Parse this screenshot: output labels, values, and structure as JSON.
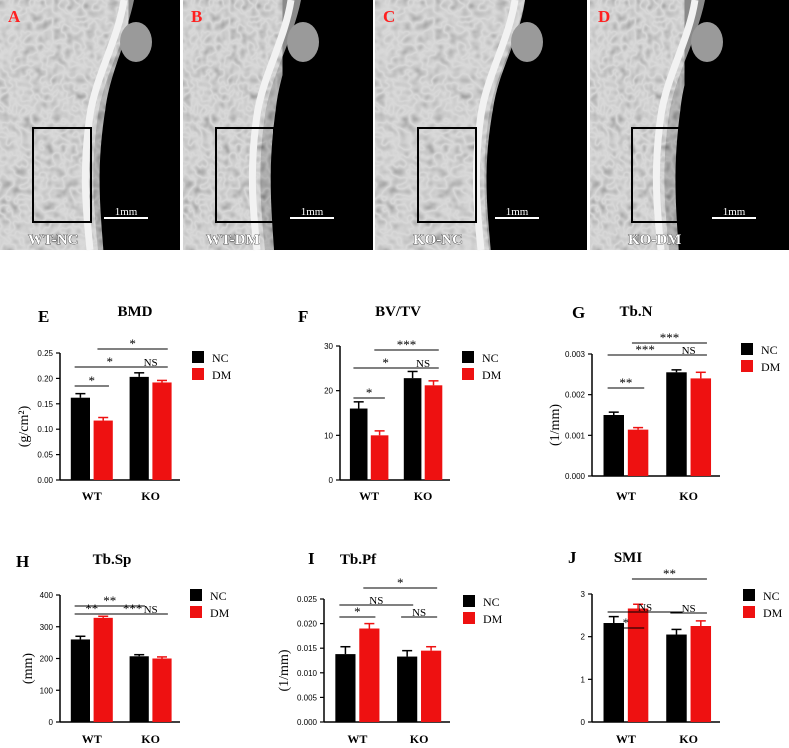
{
  "micro_ct": {
    "panels": [
      {
        "letter": "A",
        "group": "WT-NC",
        "scale": "1mm"
      },
      {
        "letter": "B",
        "group": "WT-DM",
        "scale": "1mm"
      },
      {
        "letter": "C",
        "group": "KO-NC",
        "scale": "1mm"
      },
      {
        "letter": "D",
        "group": "KO-DM",
        "scale": "1mm"
      }
    ]
  },
  "colors": {
    "NC": "#000000",
    "DM": "#ee1111",
    "panel_letter": "#ff2020",
    "background": "#ffffff"
  },
  "chart_data": [
    {
      "type": "bar",
      "letter": "E",
      "title": "BMD",
      "ylabel": "(g/cm²)",
      "categories": [
        "WT",
        "KO"
      ],
      "ylim": [
        0,
        0.25
      ],
      "yticks": [
        "0.00",
        "0.05",
        "0.10",
        "0.15",
        "0.20",
        "0.25"
      ],
      "legend": [
        "NC",
        "DM"
      ],
      "legend_position": "right",
      "series": [
        {
          "name": "NC",
          "values": [
            0.162,
            0.203
          ],
          "errors": [
            0.008,
            0.008
          ]
        },
        {
          "name": "DM",
          "values": [
            0.117,
            0.192
          ],
          "errors": [
            0.006,
            0.004
          ]
        }
      ],
      "annotations": [
        {
          "label": "*",
          "from": "WT-NC",
          "to": "WT-DM"
        },
        {
          "label": "*",
          "from": "WT-NC",
          "to": "KO-NC"
        },
        {
          "label": "*",
          "from": "WT-DM",
          "to": "KO-DM"
        },
        {
          "label": "NS",
          "from": "KO-NC",
          "to": "KO-DM"
        }
      ]
    },
    {
      "type": "bar",
      "letter": "F",
      "title": "BV/TV",
      "ylabel": "",
      "categories": [
        "WT",
        "KO"
      ],
      "ylim": [
        0,
        30
      ],
      "yticks": [
        "0",
        "10",
        "20",
        "30"
      ],
      "legend": [
        "NC",
        "DM"
      ],
      "legend_position": "right",
      "series": [
        {
          "name": "NC",
          "values": [
            16.0,
            22.8
          ],
          "errors": [
            1.5,
            1.5
          ]
        },
        {
          "name": "DM",
          "values": [
            10.0,
            21.2
          ],
          "errors": [
            1.0,
            1.0
          ]
        }
      ],
      "annotations": [
        {
          "label": "*",
          "from": "WT-NC",
          "to": "WT-DM"
        },
        {
          "label": "*",
          "from": "WT-NC",
          "to": "KO-NC"
        },
        {
          "label": "***",
          "from": "WT-DM",
          "to": "KO-DM"
        },
        {
          "label": "NS",
          "from": "KO-NC",
          "to": "KO-DM"
        }
      ]
    },
    {
      "type": "bar",
      "letter": "G",
      "title": "Tb.N",
      "ylabel": "(1/mm)",
      "categories": [
        "WT",
        "KO"
      ],
      "ylim": [
        0,
        0.003
      ],
      "yticks": [
        "0.000",
        "0.001",
        "0.002",
        "0.003"
      ],
      "legend": [
        "NC",
        "DM"
      ],
      "legend_position": "right",
      "series": [
        {
          "name": "NC",
          "values": [
            0.0015,
            0.00255
          ],
          "errors": [
            7e-05,
            6e-05
          ]
        },
        {
          "name": "DM",
          "values": [
            0.00114,
            0.0024
          ],
          "errors": [
            5e-05,
            0.00015
          ]
        }
      ],
      "annotations": [
        {
          "label": "**",
          "from": "WT-NC",
          "to": "WT-DM"
        },
        {
          "label": "***",
          "from": "WT-NC",
          "to": "KO-NC"
        },
        {
          "label": "***",
          "from": "WT-DM",
          "to": "KO-DM"
        },
        {
          "label": "NS",
          "from": "KO-NC",
          "to": "KO-DM"
        }
      ]
    },
    {
      "type": "bar",
      "letter": "H",
      "title": "Tb.Sp",
      "ylabel": "(mm)",
      "categories": [
        "WT",
        "KO"
      ],
      "ylim": [
        0,
        400
      ],
      "yticks": [
        "0",
        "100",
        "200",
        "300",
        "400"
      ],
      "legend": [
        "NC",
        "DM"
      ],
      "legend_position": "right",
      "series": [
        {
          "name": "NC",
          "values": [
            260,
            207
          ],
          "errors": [
            10,
            5
          ]
        },
        {
          "name": "DM",
          "values": [
            328,
            200
          ],
          "errors": [
            5,
            5
          ]
        }
      ],
      "annotations": [
        {
          "label": "**",
          "from": "WT-NC",
          "to": "WT-DM"
        },
        {
          "label": "**",
          "from": "WT-NC",
          "to": "KO-NC"
        },
        {
          "label": "***",
          "from": "WT-DM",
          "to": "KO-DM"
        },
        {
          "label": "NS",
          "from": "KO-NC",
          "to": "KO-DM"
        }
      ]
    },
    {
      "type": "bar",
      "letter": "I",
      "title": "Tb.Pf",
      "ylabel": "(1/mm)",
      "categories": [
        "WT",
        "KO"
      ],
      "ylim": [
        0,
        0.025
      ],
      "yticks": [
        "0.000",
        "0.005",
        "0.010",
        "0.015",
        "0.020",
        "0.025"
      ],
      "legend": [
        "NC",
        "DM"
      ],
      "legend_position": "right",
      "series": [
        {
          "name": "NC",
          "values": [
            0.0138,
            0.0133
          ],
          "errors": [
            0.0015,
            0.0012
          ]
        },
        {
          "name": "DM",
          "values": [
            0.019,
            0.0145
          ],
          "errors": [
            0.001,
            0.0008
          ]
        }
      ],
      "annotations": [
        {
          "label": "*",
          "from": "WT-NC",
          "to": "WT-DM"
        },
        {
          "label": "NS",
          "from": "WT-NC",
          "to": "KO-NC"
        },
        {
          "label": "*",
          "from": "WT-DM",
          "to": "KO-DM"
        },
        {
          "label": "NS",
          "from": "KO-NC",
          "to": "KO-DM"
        }
      ]
    },
    {
      "type": "bar",
      "letter": "J",
      "title": "SMI",
      "ylabel": "",
      "categories": [
        "WT",
        "KO"
      ],
      "ylim": [
        0,
        3
      ],
      "yticks": [
        "0",
        "1",
        "2",
        "3"
      ],
      "legend": [
        "NC",
        "DM"
      ],
      "legend_position": "right",
      "series": [
        {
          "name": "NC",
          "values": [
            2.32,
            2.05
          ],
          "errors": [
            0.15,
            0.12
          ]
        },
        {
          "name": "DM",
          "values": [
            2.66,
            2.25
          ],
          "errors": [
            0.1,
            0.12
          ]
        }
      ],
      "annotations": [
        {
          "label": "*",
          "from": "WT-NC",
          "to": "WT-DM"
        },
        {
          "label": "NS",
          "from": "WT-NC",
          "to": "KO-NC"
        },
        {
          "label": "**",
          "from": "WT-DM",
          "to": "KO-DM"
        },
        {
          "label": "NS",
          "from": "KO-NC",
          "to": "KO-DM"
        }
      ]
    }
  ]
}
